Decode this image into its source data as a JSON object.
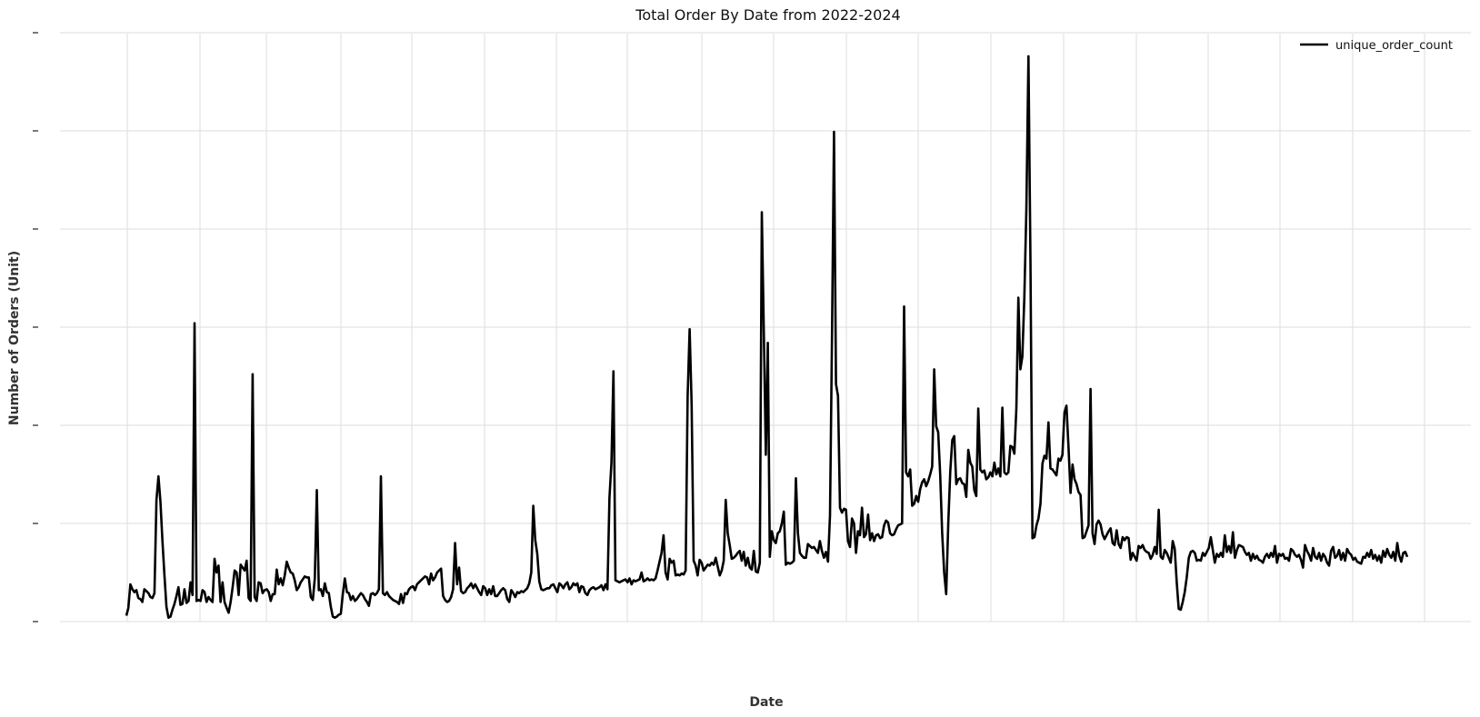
{
  "chart_data": {
    "type": "line",
    "title": "Total Order By Date from 2022-2024",
    "xlabel": "Date",
    "ylabel": "Number of Orders (Unit)",
    "x_tick_labels_legible": false,
    "y_tick_labels_legible": false,
    "legend": {
      "position": "top-right",
      "entries": [
        "unique_order_count"
      ]
    },
    "grid": true,
    "colors": {
      "line": "#000000",
      "grid": "#dddddd",
      "background": "#ffffff"
    },
    "series": [
      {
        "name": "unique_order_count",
        "y": [
          0.06,
          0.14,
          0.38,
          0.33,
          0.3,
          0.32,
          0.24,
          0.23,
          0.2,
          0.33,
          0.31,
          0.29,
          0.25,
          0.24,
          0.29,
          1.24,
          1.48,
          1.22,
          0.82,
          0.47,
          0.15,
          0.04,
          0.05,
          0.12,
          0.18,
          0.26,
          0.35,
          0.17,
          0.18,
          0.33,
          0.19,
          0.21,
          0.4,
          0.27,
          3.04,
          0.21,
          0.22,
          0.21,
          0.32,
          0.3,
          0.2,
          0.25,
          0.22,
          0.2,
          0.64,
          0.5,
          0.57,
          0.2,
          0.4,
          0.2,
          0.14,
          0.09,
          0.2,
          0.35,
          0.52,
          0.5,
          0.27,
          0.58,
          0.55,
          0.52,
          0.62,
          0.24,
          0.21,
          2.52,
          0.25,
          0.21,
          0.4,
          0.39,
          0.29,
          0.32,
          0.33,
          0.3,
          0.21,
          0.28,
          0.28,
          0.53,
          0.38,
          0.44,
          0.37,
          0.47,
          0.61,
          0.55,
          0.5,
          0.49,
          0.42,
          0.32,
          0.35,
          0.4,
          0.43,
          0.46,
          0.45,
          0.45,
          0.25,
          0.22,
          0.44,
          1.34,
          0.32,
          0.33,
          0.26,
          0.39,
          0.3,
          0.29,
          0.15,
          0.05,
          0.04,
          0.05,
          0.07,
          0.08,
          0.28,
          0.44,
          0.3,
          0.29,
          0.22,
          0.26,
          0.21,
          0.23,
          0.26,
          0.29,
          0.27,
          0.23,
          0.2,
          0.16,
          0.28,
          0.29,
          0.27,
          0.29,
          0.33,
          1.48,
          0.29,
          0.27,
          0.3,
          0.26,
          0.24,
          0.22,
          0.21,
          0.2,
          0.18,
          0.28,
          0.19,
          0.29,
          0.28,
          0.33,
          0.35,
          0.36,
          0.32,
          0.38,
          0.4,
          0.42,
          0.44,
          0.46,
          0.45,
          0.38,
          0.49,
          0.42,
          0.45,
          0.5,
          0.52,
          0.54,
          0.26,
          0.22,
          0.2,
          0.21,
          0.25,
          0.33,
          0.8,
          0.38,
          0.55,
          0.31,
          0.29,
          0.3,
          0.34,
          0.36,
          0.39,
          0.34,
          0.38,
          0.34,
          0.3,
          0.27,
          0.36,
          0.34,
          0.27,
          0.33,
          0.28,
          0.36,
          0.26,
          0.26,
          0.29,
          0.32,
          0.34,
          0.32,
          0.23,
          0.2,
          0.32,
          0.29,
          0.25,
          0.3,
          0.29,
          0.31,
          0.3,
          0.32,
          0.34,
          0.39,
          0.5,
          1.18,
          0.83,
          0.69,
          0.41,
          0.33,
          0.32,
          0.33,
          0.34,
          0.34,
          0.37,
          0.38,
          0.34,
          0.3,
          0.39,
          0.37,
          0.34,
          0.38,
          0.4,
          0.33,
          0.35,
          0.39,
          0.37,
          0.39,
          0.3,
          0.36,
          0.35,
          0.29,
          0.27,
          0.32,
          0.34,
          0.35,
          0.33,
          0.34,
          0.35,
          0.37,
          0.32,
          0.38,
          0.33,
          1.26,
          1.62,
          2.55,
          0.42,
          0.41,
          0.4,
          0.41,
          0.42,
          0.43,
          0.4,
          0.44,
          0.38,
          0.42,
          0.41,
          0.42,
          0.43,
          0.5,
          0.41,
          0.42,
          0.44,
          0.42,
          0.43,
          0.42,
          0.44,
          0.52,
          0.61,
          0.7,
          0.88,
          0.5,
          0.43,
          0.64,
          0.6,
          0.62,
          0.47,
          0.48,
          0.47,
          0.49,
          0.48,
          0.52,
          2.3,
          2.98,
          2.21,
          0.62,
          0.57,
          0.47,
          0.63,
          0.6,
          0.52,
          0.55,
          0.58,
          0.57,
          0.6,
          0.58,
          0.65,
          0.56,
          0.47,
          0.52,
          0.62,
          1.24,
          0.9,
          0.78,
          0.64,
          0.65,
          0.67,
          0.7,
          0.72,
          0.62,
          0.71,
          0.57,
          0.65,
          0.55,
          0.53,
          0.72,
          0.51,
          0.5,
          0.6,
          4.17,
          2.96,
          1.7,
          2.84,
          0.66,
          0.92,
          0.83,
          0.8,
          0.9,
          0.92,
          1.0,
          1.12,
          0.58,
          0.6,
          0.59,
          0.6,
          0.62,
          1.46,
          0.9,
          0.7,
          0.67,
          0.65,
          0.65,
          0.79,
          0.77,
          0.75,
          0.76,
          0.73,
          0.7,
          0.82,
          0.72,
          0.65,
          0.71,
          0.61,
          1.08,
          2.9,
          4.99,
          2.42,
          2.3,
          1.16,
          1.11,
          1.15,
          1.14,
          0.82,
          0.76,
          1.05,
          1.0,
          0.7,
          0.92,
          0.88,
          1.16,
          0.86,
          0.89,
          1.09,
          0.83,
          0.9,
          0.82,
          0.88,
          0.89,
          0.85,
          0.86,
          0.98,
          1.03,
          1.01,
          0.9,
          0.88,
          0.89,
          0.94,
          0.98,
          0.99,
          1.0,
          3.21,
          1.52,
          1.48,
          1.55,
          1.18,
          1.2,
          1.28,
          1.22,
          1.35,
          1.42,
          1.45,
          1.38,
          1.43,
          1.5,
          1.58,
          2.57,
          1.99,
          1.93,
          1.5,
          0.9,
          0.5,
          0.28,
          1.0,
          1.53,
          1.85,
          1.89,
          1.4,
          1.45,
          1.46,
          1.41,
          1.4,
          1.27,
          1.75,
          1.62,
          1.58,
          1.34,
          1.28,
          2.17,
          1.55,
          1.52,
          1.54,
          1.45,
          1.47,
          1.52,
          1.48,
          1.62,
          1.5,
          1.56,
          1.48,
          2.18,
          1.52,
          1.5,
          1.52,
          1.79,
          1.78,
          1.71,
          2.17,
          3.3,
          2.57,
          2.7,
          3.31,
          4.2,
          5.76,
          3.68,
          0.85,
          0.86,
          0.98,
          1.05,
          1.2,
          1.61,
          1.69,
          1.66,
          2.03,
          1.56,
          1.55,
          1.52,
          1.49,
          1.66,
          1.64,
          1.7,
          2.13,
          2.2,
          1.77,
          1.31,
          1.6,
          1.45,
          1.4,
          1.32,
          1.29,
          0.85,
          0.86,
          0.92,
          0.98,
          2.37,
          0.9,
          0.79,
          0.99,
          1.03,
          0.99,
          0.89,
          0.84,
          0.88,
          0.92,
          0.95,
          0.8,
          0.78,
          0.93,
          0.79,
          0.75,
          0.86,
          0.83,
          0.86,
          0.85,
          0.63,
          0.7,
          0.66,
          0.62,
          0.77,
          0.75,
          0.78,
          0.73,
          0.71,
          0.7,
          0.64,
          0.68,
          0.76,
          0.69,
          1.14,
          0.66,
          0.64,
          0.73,
          0.7,
          0.65,
          0.6,
          0.82,
          0.74,
          0.4,
          0.13,
          0.12,
          0.2,
          0.3,
          0.45,
          0.65,
          0.71,
          0.72,
          0.7,
          0.62,
          0.63,
          0.62,
          0.7,
          0.67,
          0.71,
          0.75,
          0.86,
          0.73,
          0.6,
          0.69,
          0.66,
          0.7,
          0.66,
          0.88,
          0.71,
          0.77,
          0.7,
          0.91,
          0.65,
          0.73,
          0.78,
          0.77,
          0.76,
          0.71,
          0.68,
          0.7,
          0.62,
          0.69,
          0.64,
          0.67,
          0.63,
          0.62,
          0.6,
          0.66,
          0.69,
          0.65,
          0.7,
          0.66,
          0.77,
          0.6,
          0.69,
          0.67,
          0.69,
          0.64,
          0.65,
          0.62,
          0.74,
          0.72,
          0.68,
          0.66,
          0.68,
          0.63,
          0.55,
          0.78,
          0.72,
          0.68,
          0.62,
          0.75,
          0.66,
          0.64,
          0.7,
          0.62,
          0.69,
          0.66,
          0.6,
          0.57,
          0.72,
          0.76,
          0.65,
          0.67,
          0.73,
          0.63,
          0.7,
          0.62,
          0.74,
          0.7,
          0.68,
          0.63,
          0.65,
          0.61,
          0.6,
          0.59,
          0.66,
          0.65,
          0.7,
          0.66,
          0.73,
          0.64,
          0.68,
          0.62,
          0.67,
          0.6,
          0.72,
          0.66,
          0.74,
          0.68,
          0.65,
          0.71,
          0.62,
          0.8,
          0.67,
          0.61,
          0.7,
          0.71,
          0.66
        ]
      }
    ]
  }
}
